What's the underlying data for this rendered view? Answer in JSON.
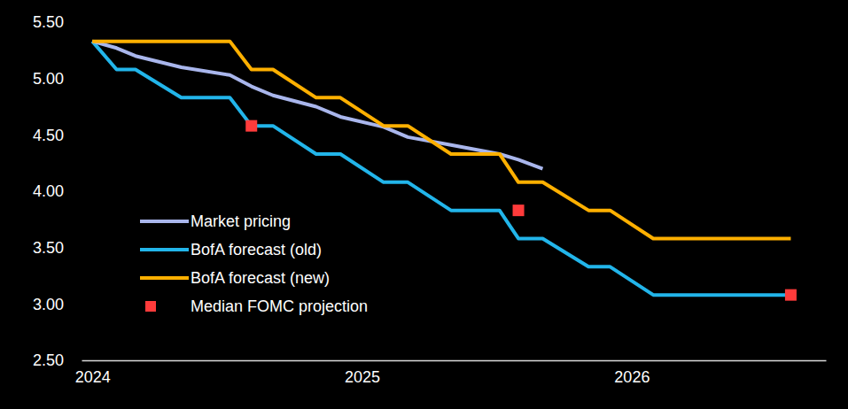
{
  "chart_data": {
    "type": "line",
    "x": [
      2024.0,
      2024.09,
      2024.16,
      2024.33,
      2024.51,
      2024.59,
      2024.67,
      2024.83,
      2024.92,
      2025.08,
      2025.17,
      2025.33,
      2025.51,
      2025.58,
      2025.67,
      2025.84,
      2025.92,
      2026.08,
      2026.59
    ],
    "xlim": [
      2023.96,
      2026.72
    ],
    "xticks": [
      2024,
      2025,
      2026
    ],
    "ylim": [
      2.5,
      5.5
    ],
    "yticks": [
      {
        "value": 2.5,
        "label": "2.50"
      },
      {
        "value": 3.0,
        "label": "3.00"
      },
      {
        "value": 3.5,
        "label": "3.50"
      },
      {
        "value": 4.0,
        "label": "4.00"
      },
      {
        "value": 4.5,
        "label": "4.50"
      },
      {
        "value": 5.0,
        "label": "5.00"
      },
      {
        "value": 5.5,
        "label": "5.50"
      }
    ],
    "grid": false,
    "legend": "left",
    "series": [
      {
        "name": "Market pricing",
        "color": "#a9b6ec",
        "type": "line",
        "values": [
          5.33,
          5.27,
          5.2,
          5.1,
          5.03,
          4.93,
          4.85,
          4.75,
          4.66,
          4.57,
          4.48,
          4.41,
          4.33,
          4.28,
          4.2,
          null,
          null,
          null,
          null
        ]
      },
      {
        "name": "BofA forecast (old)",
        "color": "#22b5ea",
        "type": "line",
        "values": [
          5.33,
          5.08,
          5.08,
          4.83,
          4.83,
          4.58,
          4.58,
          4.33,
          4.33,
          4.08,
          4.08,
          3.83,
          3.83,
          3.58,
          3.58,
          3.33,
          3.33,
          3.08,
          3.08
        ]
      },
      {
        "name": "BofA forecast (new)",
        "color": "#ffb000",
        "type": "line",
        "values": [
          5.33,
          5.33,
          5.33,
          5.33,
          5.33,
          5.08,
          5.08,
          4.83,
          4.83,
          4.58,
          4.58,
          4.33,
          4.33,
          4.08,
          4.08,
          3.83,
          3.83,
          3.58,
          3.58
        ]
      },
      {
        "name": "Median FOMC projection",
        "color": "#ff3b3b",
        "type": "scatter",
        "marker": "square",
        "values": [
          null,
          null,
          null,
          null,
          null,
          4.58,
          null,
          null,
          null,
          null,
          null,
          null,
          null,
          3.83,
          null,
          null,
          null,
          null,
          3.08
        ]
      }
    ]
  }
}
